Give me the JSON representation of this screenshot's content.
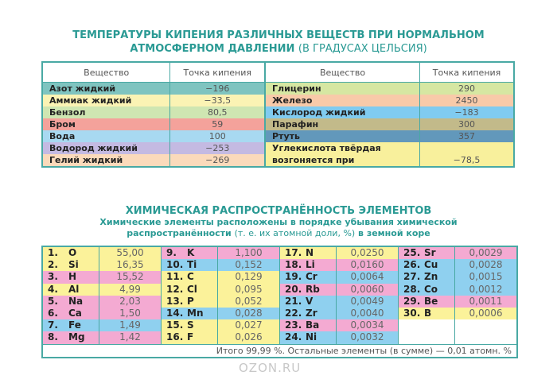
{
  "boiling": {
    "title_bold": "ТЕМПЕРАТУРЫ КИПЕНИЯ РАЗЛИЧНЫХ ВЕЩЕСТВ ПРИ НОРМАЛЬНОМ",
    "title_bold2": "АТМОСФЕРНОМ ДАВЛЕНИИ",
    "title_thin": "(В ГРАДУСАХ ЦЕЛЬСИЯ)",
    "col_substance": "Вещество",
    "col_point": "Точка кипения",
    "left": [
      {
        "name": "Азот жидкий",
        "value": "−196",
        "color": "#7fc4c0"
      },
      {
        "name": "Аммиак жидкий",
        "value": "−33,5",
        "color": "#fbf3b4"
      },
      {
        "name": "Бензол",
        "value": "80,5",
        "color": "#cfe6b2"
      },
      {
        "name": "Бром",
        "value": "59",
        "color": "#f4a29b"
      },
      {
        "name": "Вода",
        "value": "100",
        "color": "#a8d9f1"
      },
      {
        "name": "Водород жидкий",
        "value": "−253",
        "color": "#c4bae2"
      },
      {
        "name": "Гелий жидкий",
        "value": "−269",
        "color": "#fbdabb"
      }
    ],
    "right": [
      {
        "name": "Глицерин",
        "value": "290",
        "color": "#d6e7a2"
      },
      {
        "name": "Железо",
        "value": "2450",
        "color": "#f8caa9"
      },
      {
        "name": "Кислород жидкий",
        "value": "−183",
        "color": "#80cbf0"
      },
      {
        "name": "Парафин",
        "value": "300",
        "color": "#c2ba8a"
      },
      {
        "name": "Ртуть",
        "value": "357",
        "color": "#6298bb"
      },
      {
        "name": "Углекислота твёрдая",
        "name2": "возгоняется при",
        "value": "−78,5",
        "color": "#f8f09c"
      }
    ]
  },
  "abundance": {
    "title": "ХИМИЧЕСКАЯ РАСПРОСТРАНЁННОСТЬ ЭЛЕМЕНТОВ",
    "subtitle1": "Химические элементы расположены в порядке убывания химической",
    "subtitle2_bold": "распространённости",
    "subtitle2_thin": "(т. е. их атомной доли, %)",
    "subtitle2_end": "в земной коре",
    "columns": [
      [
        [
          "1.",
          "O",
          "55,00",
          "y"
        ],
        [
          "2.",
          "Si",
          "16,35",
          "y"
        ],
        [
          "3.",
          "H",
          "15,52",
          "p"
        ],
        [
          "4.",
          "Al",
          "4,99",
          "y"
        ],
        [
          "5.",
          "Na",
          "2,03",
          "p"
        ],
        [
          "6.",
          "Ca",
          "1,50",
          "p"
        ],
        [
          "7.",
          "Fe",
          "1,49",
          "b"
        ],
        [
          "8.",
          "Mg",
          "1,42",
          "p"
        ]
      ],
      [
        [
          "9.",
          "K",
          "1,100",
          "p"
        ],
        [
          "10.",
          "Ti",
          "0,152",
          "b"
        ],
        [
          "11.",
          "C",
          "0,129",
          "y"
        ],
        [
          "12.",
          "Cl",
          "0,095",
          "y"
        ],
        [
          "13.",
          "P",
          "0,052",
          "y"
        ],
        [
          "14.",
          "Mn",
          "0,028",
          "b"
        ],
        [
          "15.",
          "S",
          "0,027",
          "y"
        ],
        [
          "16.",
          "F",
          "0,026",
          "y"
        ]
      ],
      [
        [
          "17.",
          "N",
          "0,0250",
          "y"
        ],
        [
          "18.",
          "Li",
          "0,0160",
          "p"
        ],
        [
          "19.",
          "Cr",
          "0,0064",
          "b"
        ],
        [
          "20.",
          "Rb",
          "0,0060",
          "p"
        ],
        [
          "21.",
          "V",
          "0,0049",
          "b"
        ],
        [
          "22.",
          "Zr",
          "0,0040",
          "b"
        ],
        [
          "23.",
          "Ba",
          "0,0034",
          "p"
        ],
        [
          "24.",
          "Ni",
          "0,0032",
          "b"
        ]
      ],
      [
        [
          "25.",
          "Sr",
          "0,0029",
          "p"
        ],
        [
          "26.",
          "Cu",
          "0,0028",
          "b"
        ],
        [
          "27.",
          "Zn",
          "0,0015",
          "b"
        ],
        [
          "28.",
          "Co",
          "0,0012",
          "b"
        ],
        [
          "29.",
          "Be",
          "0,0011",
          "p"
        ],
        [
          "30.",
          "B",
          "0,0006",
          "y"
        ]
      ]
    ],
    "total": "Итого 99,99 %. Остальные элементы (в сумме) — 0,01 атомн. %"
  },
  "watermark": "OZON.RU"
}
